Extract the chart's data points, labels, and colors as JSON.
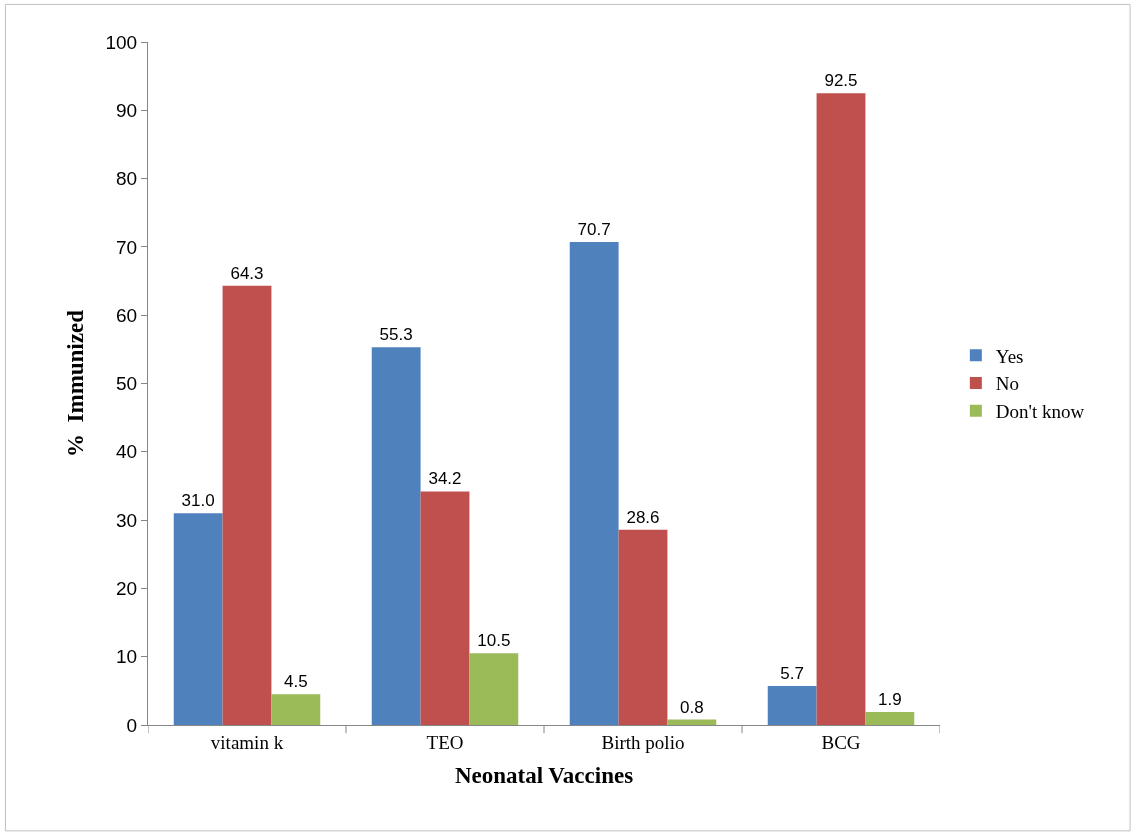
{
  "chart_data": {
    "type": "bar",
    "xlabel": "Neonatal Vaccines",
    "ylabel": "%  Immunized",
    "categories": [
      "vitamin k",
      "TEO",
      "Birth polio",
      "BCG"
    ],
    "series": [
      {
        "name": "Yes",
        "color": "#4f81bd",
        "values": [
          31.0,
          55.3,
          70.7,
          5.7
        ],
        "value_labels": [
          "31.0",
          "55.3",
          "70.7",
          "5.7"
        ]
      },
      {
        "name": "No",
        "color": "#c0504d",
        "values": [
          64.3,
          34.2,
          28.6,
          92.5
        ],
        "value_labels": [
          "64.3",
          "34.2",
          "28.6",
          "92.5"
        ]
      },
      {
        "name": "Don't know",
        "color": "#9bbb59",
        "values": [
          4.5,
          10.5,
          0.8,
          1.9
        ],
        "value_labels": [
          "4.5",
          "10.5",
          "0.8",
          "1.9"
        ]
      }
    ],
    "ylim": [
      0,
      100
    ],
    "yticks": [
      0,
      10,
      20,
      30,
      40,
      50,
      60,
      70,
      80,
      90,
      100
    ],
    "grid": false,
    "legend": "right"
  }
}
